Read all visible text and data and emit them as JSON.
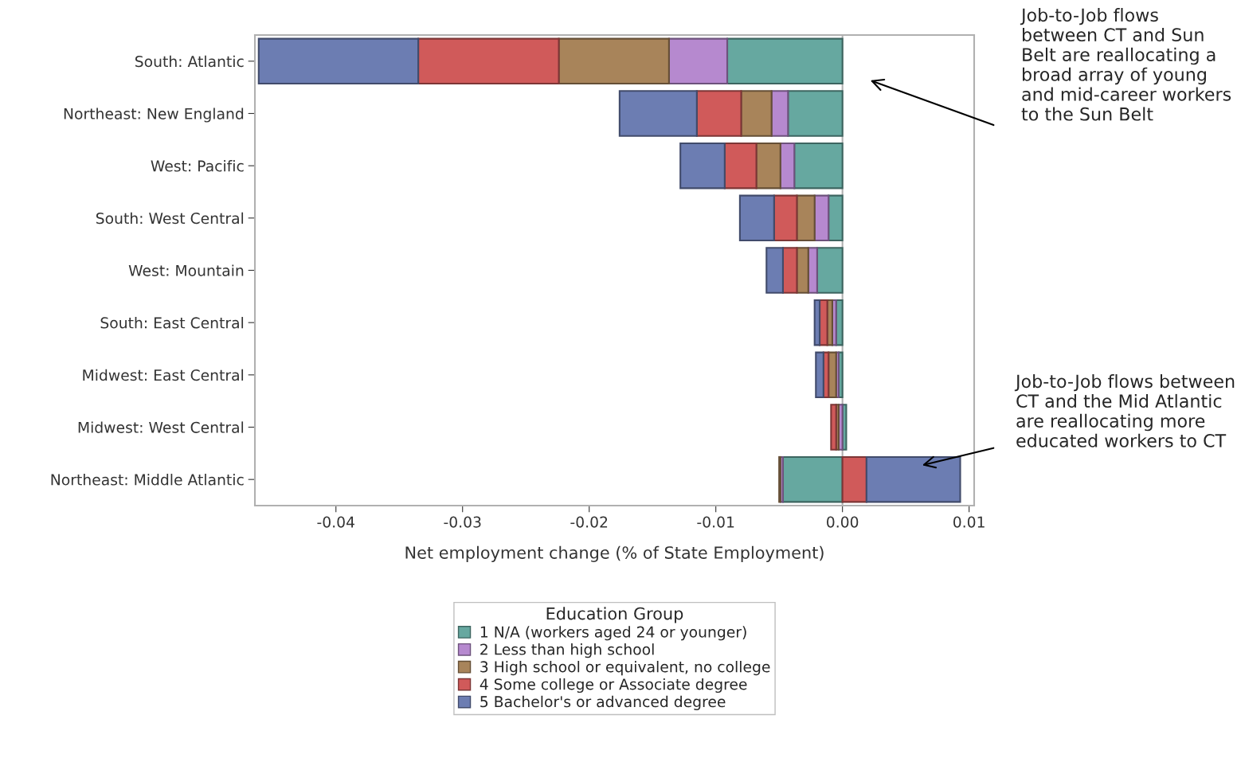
{
  "chart_data": {
    "type": "bar",
    "orientation": "horizontal",
    "stacked": true,
    "categories": [
      "South: Atlantic",
      "Northeast: New England",
      "West: Pacific",
      "South: West Central",
      "West: Mountain",
      "South: East Central",
      "Midwest: East Central",
      "Midwest: West Central",
      "Northeast: Middle Atlantic"
    ],
    "series": [
      {
        "name": "1 N/A (workers aged 24 or younger)",
        "color": "#66a8a0",
        "values": [
          -0.0091,
          -0.0043,
          -0.0038,
          -0.0011,
          -0.002,
          -0.0005,
          -0.0003,
          0.0003,
          -0.0047
        ]
      },
      {
        "name": "2 Less than high school",
        "color": "#b689cf",
        "values": [
          -0.0046,
          -0.0013,
          -0.0011,
          -0.0011,
          -0.0007,
          -0.0003,
          -0.0002,
          -0.0003,
          -0.0002
        ]
      },
      {
        "name": "3 High school or equivalent, no college",
        "color": "#a8845a",
        "values": [
          -0.0087,
          -0.0024,
          -0.0019,
          -0.0014,
          -0.0009,
          -0.0004,
          -0.0006,
          -0.0002,
          -0.0001
        ]
      },
      {
        "name": "4 Some college or Associate degree",
        "color": "#d05a5a",
        "values": [
          -0.0111,
          -0.0035,
          -0.0025,
          -0.0018,
          -0.0011,
          -0.0006,
          -0.0004,
          -0.0004,
          0.0019
        ]
      },
      {
        "name": "5 Bachelor's or advanced degree",
        "color": "#6c7db2",
        "values": [
          -0.0126,
          -0.0061,
          -0.0035,
          -0.0027,
          -0.0013,
          -0.0004,
          -0.0006,
          null,
          0.0074
        ]
      }
    ],
    "xlim": [
      -0.0464,
      0.0104
    ],
    "xticks": [
      -0.04,
      -0.03,
      -0.02,
      -0.01,
      {
        "value": 0,
        "label": "0.00"
      },
      0.01
    ],
    "xlabel": "Net employment change (% of State Employment)",
    "legend_title": "Education Group",
    "legend": "bottom",
    "ref_lines": [
      {
        "axis": "x",
        "value": 0,
        "color": "#b0b0b0"
      }
    ],
    "annotations": [
      "Job-to-Job flows between CT and Sun Belt are reallocating a broad array of young and mid-career workers to the Sun Belt",
      "Job-to-Job flows between CT and the Mid Atlantic are reallocating more educated workers to CT"
    ]
  }
}
